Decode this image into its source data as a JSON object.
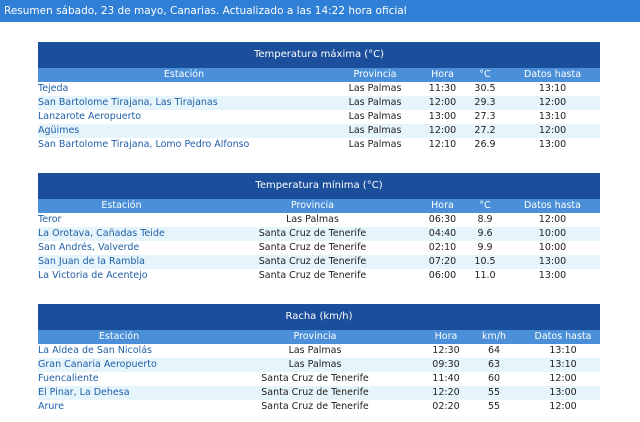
{
  "header": {
    "title": "Resumen sábado, 23 de mayo, Canarias. Actualizado a las 14:22 hora oficial"
  },
  "tables": [
    {
      "title": "Temperatura máxima (°C)",
      "columns": [
        "Estación",
        "Provincia",
        "Hora",
        "°C",
        "Datos hasta"
      ],
      "rows": [
        [
          "Tejeda",
          "Las Palmas",
          "11:30",
          "30.5",
          "13:10"
        ],
        [
          "San Bartolome Tirajana, Las Tirajanas",
          "Las Palmas",
          "12:00",
          "29.3",
          "12:00"
        ],
        [
          "Lanzarote Aeropuerto",
          "Las Palmas",
          "13:00",
          "27.3",
          "13:10"
        ],
        [
          "Agüimes",
          "Las Palmas",
          "12:00",
          "27.2",
          "12:00"
        ],
        [
          "San Bartolome Tirajana, Lomo Pedro Alfonso",
          "Las Palmas",
          "12:10",
          "26.9",
          "13:00"
        ]
      ]
    },
    {
      "title": "Temperatura mínima (°C)",
      "columns": [
        "Estación",
        "Provincia",
        "Hora",
        "°C",
        "Datos hasta"
      ],
      "rows": [
        [
          "Teror",
          "Las Palmas",
          "06:30",
          "8.9",
          "12:00"
        ],
        [
          "La Orotava, Cañadas Teide",
          "Santa Cruz de Tenerife",
          "04:40",
          "9.6",
          "10:00"
        ],
        [
          "San Andrés, Valverde",
          "Santa Cruz de Tenerife",
          "02:10",
          "9.9",
          "10:00"
        ],
        [
          "San Juan de la Rambla",
          "Santa Cruz de Tenerife",
          "07:20",
          "10.5",
          "13:00"
        ],
        [
          "La Victoria de Acentejo",
          "Santa Cruz de Tenerife",
          "06:00",
          "11.0",
          "13:00"
        ]
      ]
    },
    {
      "title": "Racha (km/h)",
      "columns": [
        "Estación",
        "Provincia",
        "Hora",
        "km/h",
        "Datos hasta"
      ],
      "rows": [
        [
          "La Aldea de San Nicolás",
          "Las Palmas",
          "12:30",
          "64",
          "13:10"
        ],
        [
          "Gran Canaria Aeropuerto",
          "Las Palmas",
          "09:30",
          "63",
          "13:10"
        ],
        [
          "Fuencaliente",
          "Santa Cruz de Tenerife",
          "11:40",
          "60",
          "12:00"
        ],
        [
          "El Pinar, La Dehesa",
          "Santa Cruz de Tenerife",
          "12:20",
          "55",
          "13:00"
        ],
        [
          "Arure",
          "Santa Cruz de Tenerife",
          "02:20",
          "55",
          "12:00"
        ]
      ]
    }
  ]
}
